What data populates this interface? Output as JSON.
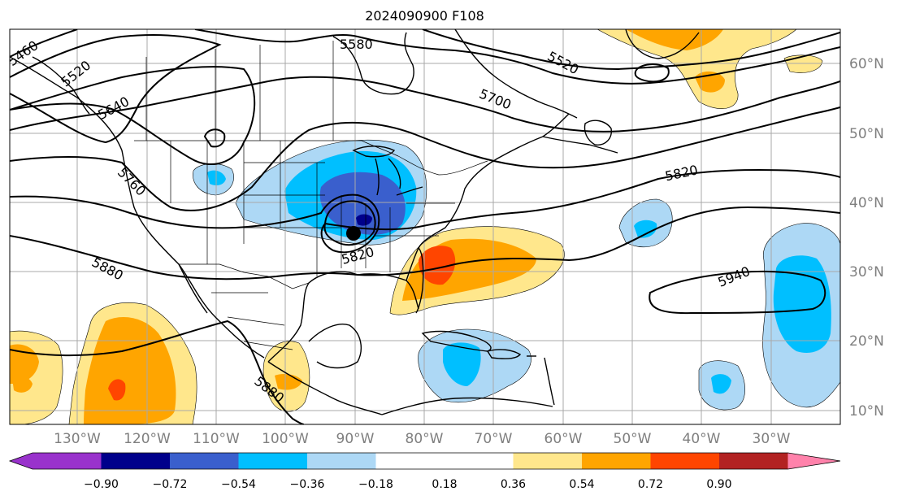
{
  "title": "2024090900 F108",
  "lat_labels": [
    "60°N",
    "50°N",
    "40°N",
    "30°N",
    "20°N",
    "10°N"
  ],
  "lon_labels": [
    "130°W",
    "120°W",
    "110°W",
    "100°W",
    "90°W",
    "80°W",
    "70°W",
    "60°W",
    "50°W",
    "40°W",
    "30°W"
  ],
  "contour_labels": [
    "5460",
    "5520",
    "5580",
    "5640",
    "5700",
    "5520",
    "5820",
    "5760",
    "5820",
    "5880",
    "5940",
    "5880"
  ],
  "colorbar": {
    "colors": [
      "#9932cc",
      "#00008b",
      "#3a5fcd",
      "#00bfff",
      "#add8f5",
      "#ffffff",
      "#ffe78c",
      "#ffa500",
      "#ff4500",
      "#b22222",
      "#ff82ab"
    ],
    "ticks": [
      "−0.90",
      "−0.72",
      "−0.54",
      "−0.36",
      "−0.18",
      "0.18",
      "0.36",
      "0.54",
      "0.72",
      "0.90"
    ]
  }
}
